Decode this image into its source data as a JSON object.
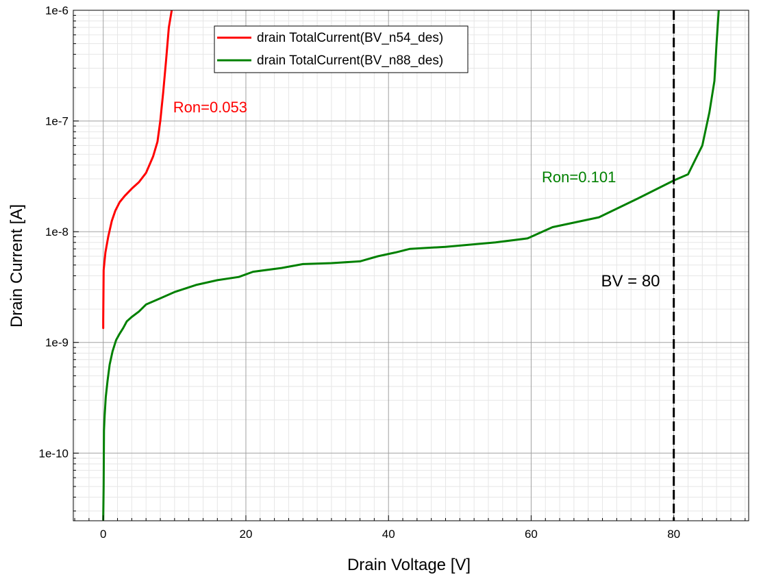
{
  "chart_data": {
    "type": "line",
    "title": "",
    "xlabel": "Drain Voltage [V]",
    "ylabel": "Drain Current [A]",
    "xlim": [
      -4.2,
      90.5
    ],
    "ylim": [
      2.45e-11,
      1e-06
    ],
    "yscale": "log",
    "grid": true,
    "legend_position": "top-center",
    "x_ticks": [
      0,
      20,
      40,
      60,
      80
    ],
    "x_tick_labels": [
      "0",
      "20",
      "40",
      "60",
      "80"
    ],
    "y_ticks": [
      1e-10,
      1e-09,
      1e-08,
      1e-07,
      1e-06
    ],
    "y_tick_labels": [
      "1e-10",
      "1e-9",
      "1e-8",
      "1e-7",
      "1e-6"
    ],
    "series": [
      {
        "name": "drain TotalCurrent(BV_n54_des)",
        "color": "#ff0000",
        "points": [
          [
            0.0,
            1.35e-09
          ],
          [
            0.0,
            1.6e-09
          ],
          [
            0.05,
            4.5e-09
          ],
          [
            0.3,
            6.5e-09
          ],
          [
            0.7,
            9e-09
          ],
          [
            1.2,
            1.25e-08
          ],
          [
            1.7,
            1.55e-08
          ],
          [
            2.3,
            1.85e-08
          ],
          [
            3.0,
            2.1e-08
          ],
          [
            4.0,
            2.45e-08
          ],
          [
            5.0,
            2.8e-08
          ],
          [
            6.0,
            3.4e-08
          ],
          [
            7.0,
            4.8e-08
          ],
          [
            7.6,
            6.5e-08
          ],
          [
            8.0,
            1e-07
          ],
          [
            8.4,
            1.8e-07
          ],
          [
            8.8,
            3.5e-07
          ],
          [
            9.2,
            7e-07
          ],
          [
            9.6,
            1e-06
          ]
        ]
      },
      {
        "name": "drain TotalCurrent(BV_n88_des)",
        "color": "#008000",
        "points": [
          [
            0.0,
            2.5e-11
          ],
          [
            0.05,
            5e-11
          ],
          [
            0.1,
            1.6e-10
          ],
          [
            0.2,
            2.2e-10
          ],
          [
            0.35,
            3.2e-10
          ],
          [
            0.6,
            4.5e-10
          ],
          [
            0.9,
            6.3e-10
          ],
          [
            1.3,
            8.3e-10
          ],
          [
            1.8,
            1.05e-09
          ],
          [
            2.3,
            1.2e-09
          ],
          [
            2.8,
            1.35e-09
          ],
          [
            3.3,
            1.55e-09
          ],
          [
            4.0,
            1.7e-09
          ],
          [
            5.0,
            1.9e-09
          ],
          [
            6.0,
            2.2e-09
          ],
          [
            8.0,
            2.5e-09
          ],
          [
            10.0,
            2.85e-09
          ],
          [
            13.0,
            3.3e-09
          ],
          [
            16.0,
            3.65e-09
          ],
          [
            19.0,
            3.9e-09
          ],
          [
            21.0,
            4.35e-09
          ],
          [
            25.0,
            4.7e-09
          ],
          [
            28.0,
            5.1e-09
          ],
          [
            32.0,
            5.2e-09
          ],
          [
            36.0,
            5.4e-09
          ],
          [
            38.5,
            6e-09
          ],
          [
            41.0,
            6.5e-09
          ],
          [
            43.0,
            7e-09
          ],
          [
            48.0,
            7.3e-09
          ],
          [
            55.0,
            8e-09
          ],
          [
            59.5,
            8.7e-09
          ],
          [
            63.0,
            1.1e-08
          ],
          [
            69.5,
            1.35e-08
          ],
          [
            75.0,
            2e-08
          ],
          [
            80.0,
            2.9e-08
          ],
          [
            82.0,
            3.3e-08
          ],
          [
            84.0,
            6e-08
          ],
          [
            85.0,
            1.2e-07
          ],
          [
            85.7,
            2.3e-07
          ],
          [
            86.0,
            5e-07
          ],
          [
            86.3,
            1e-06
          ]
        ]
      }
    ],
    "annotations": [
      {
        "text": "Ron=0.053",
        "x": 9.8,
        "y": 1.2e-07,
        "color": "#ff0000"
      },
      {
        "text": "Ron=0.101",
        "x": 61.5,
        "y": 2.8e-08,
        "color": "#008000"
      },
      {
        "text": "BV = 80",
        "x": 69.8,
        "y": 3.2e-09,
        "color": "#000000"
      }
    ],
    "vline": {
      "x": 80,
      "label": "BV = 80",
      "color": "#000000",
      "style": "dashed"
    }
  }
}
